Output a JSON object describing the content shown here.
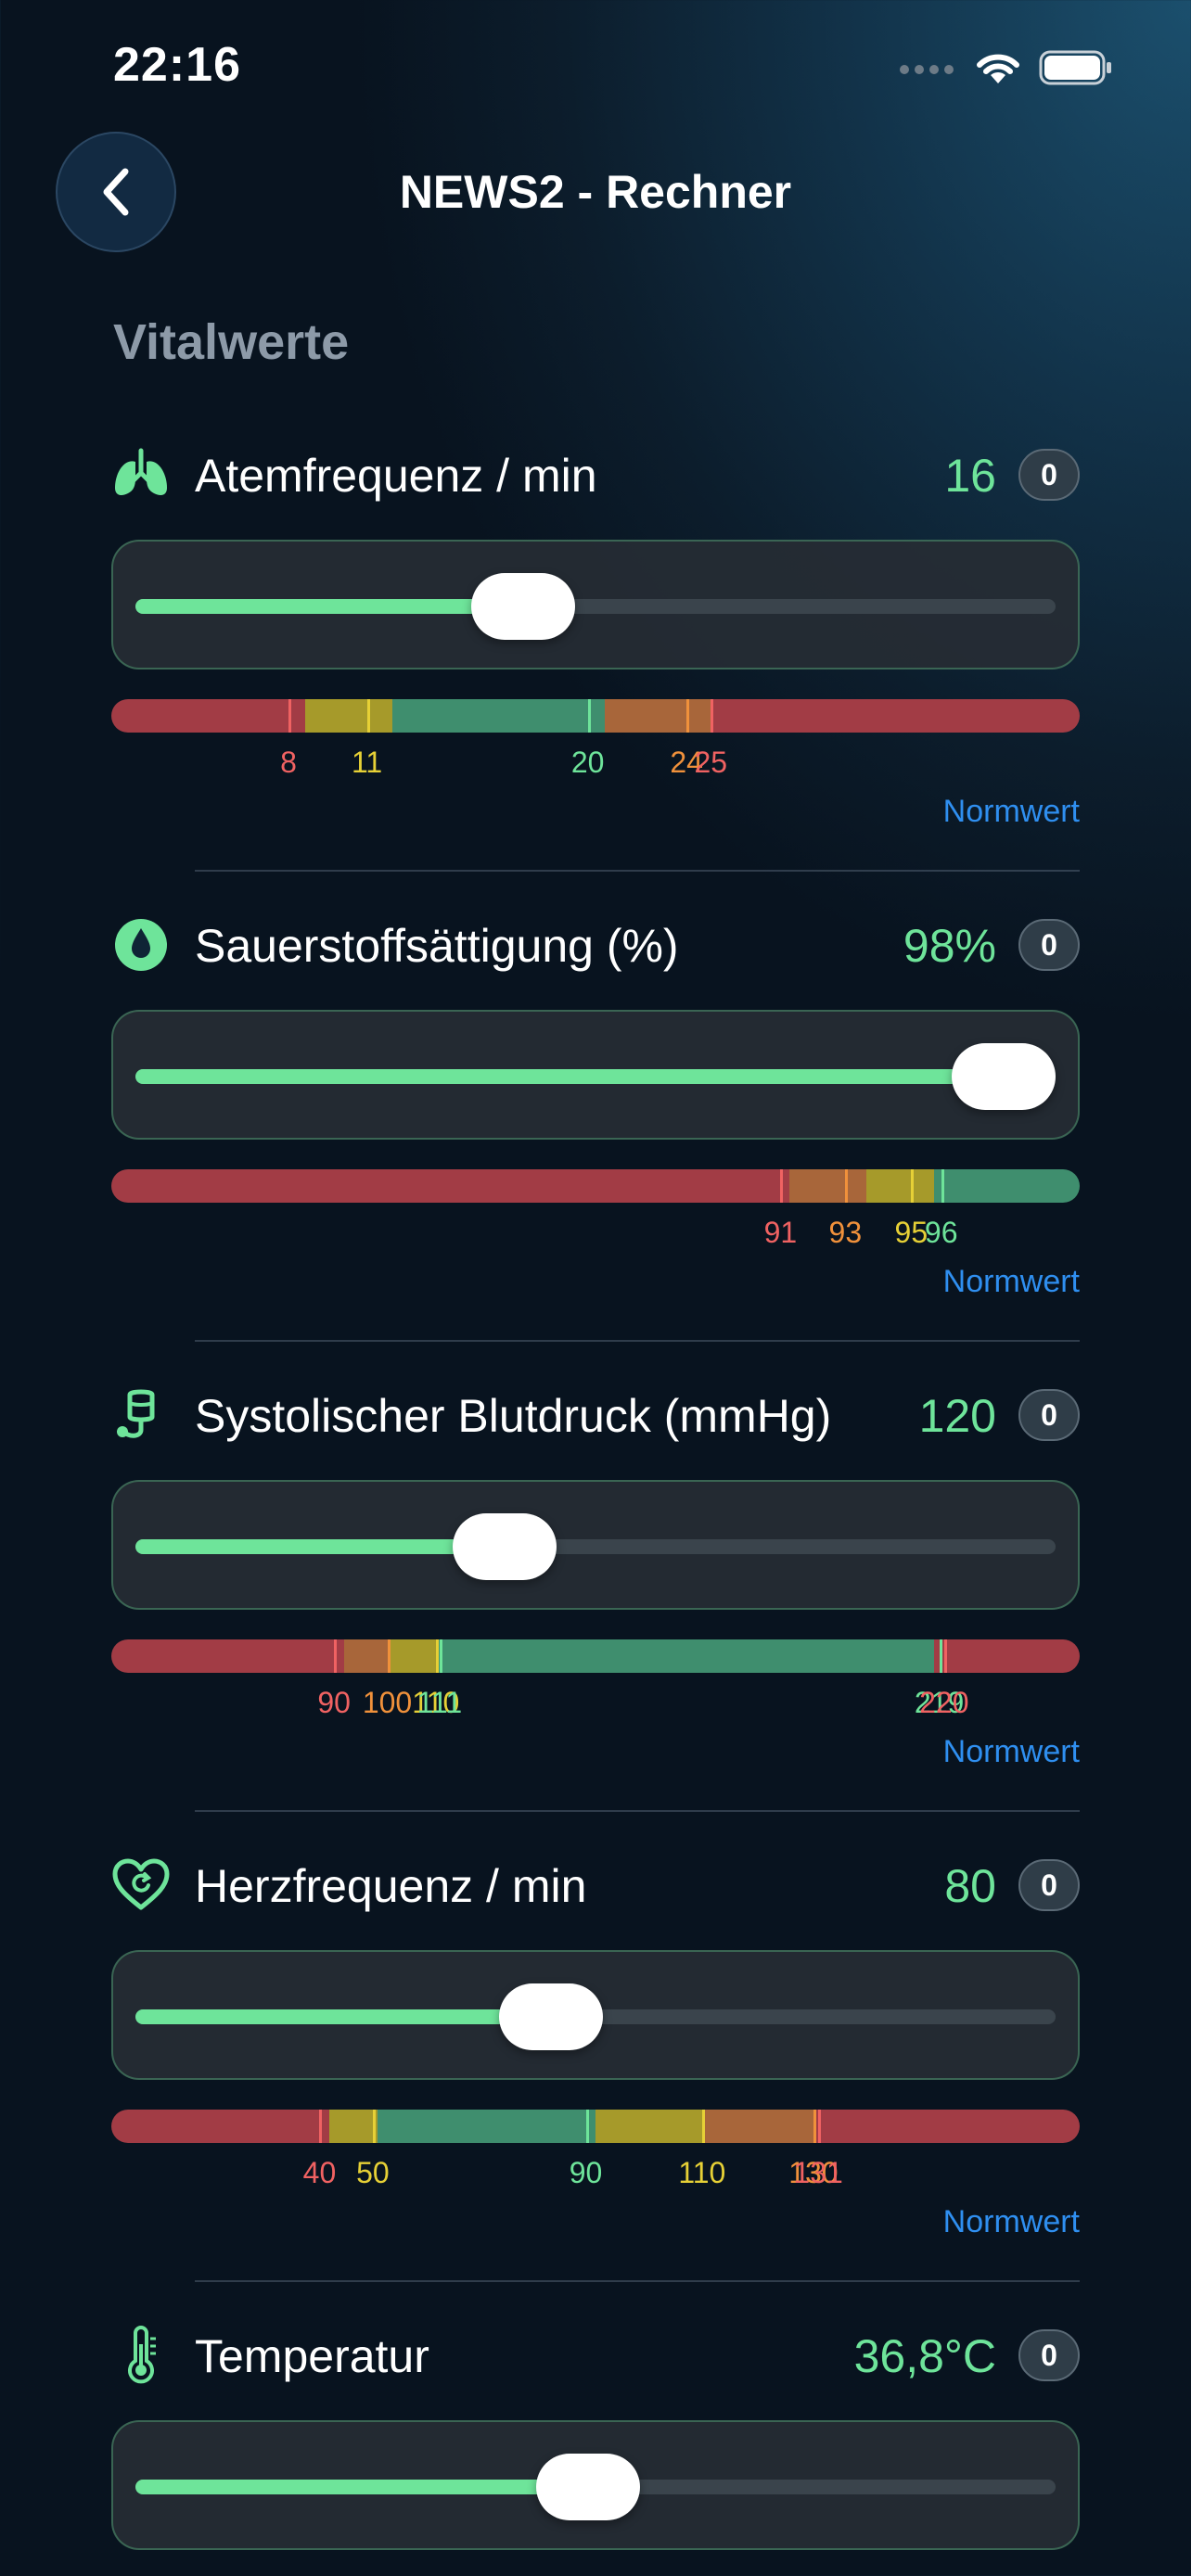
{
  "status": {
    "time": "22:16"
  },
  "nav": {
    "title": "NEWS2 - Rechner"
  },
  "section": {
    "title": "Vitalwerte"
  },
  "colors": {
    "accent": "#6ee49a",
    "link": "#2f8ff0",
    "red": "#f06262",
    "orange": "#f0913b",
    "yellow": "#e6d036"
  },
  "vitals": [
    {
      "label": "Atemfrequenz / min",
      "value": "16",
      "score": "0",
      "icon": "lungs-icon",
      "slider_fraction": 0.42,
      "segments": [
        [
          "red",
          0,
          0.2
        ],
        [
          "yellow",
          0.2,
          0.29
        ],
        [
          "green",
          0.29,
          0.51
        ],
        [
          "orange",
          0.51,
          0.62
        ],
        [
          "red",
          0.62,
          1
        ]
      ],
      "ticks": [
        {
          "label": "8",
          "pos": 0.183,
          "color": "red"
        },
        {
          "label": "11",
          "pos": 0.264,
          "color": "yellow"
        },
        {
          "label": "20",
          "pos": 0.492,
          "color": "green"
        },
        {
          "label": "24",
          "pos": 0.594,
          "color": "orange"
        },
        {
          "label": "25",
          "pos": 0.619,
          "color": "red"
        }
      ],
      "norm_label": "Normwert"
    },
    {
      "label": "Sauerstoffsättigung (%)",
      "value": "98%",
      "score": "0",
      "icon": "drop-icon",
      "slider_fraction": 0.94,
      "segments": [
        [
          "red",
          0,
          0.7
        ],
        [
          "orange",
          0.7,
          0.78
        ],
        [
          "yellow",
          0.78,
          0.85
        ],
        [
          "green",
          0.85,
          1
        ]
      ],
      "ticks": [
        {
          "label": "91",
          "pos": 0.691,
          "color": "red"
        },
        {
          "label": "93",
          "pos": 0.758,
          "color": "orange"
        },
        {
          "label": "95",
          "pos": 0.826,
          "color": "yellow"
        },
        {
          "label": "96",
          "pos": 0.857,
          "color": "green"
        }
      ],
      "norm_label": "Normwert"
    },
    {
      "label": "Systolischer Blutdruck (mmHg)",
      "value": "120",
      "score": "0",
      "icon": "bp-icon",
      "slider_fraction": 0.4,
      "segments": [
        [
          "red",
          0,
          0.24
        ],
        [
          "orange",
          0.24,
          0.285
        ],
        [
          "yellow",
          0.285,
          0.335
        ],
        [
          "green",
          0.335,
          0.85
        ],
        [
          "red",
          0.85,
          1
        ]
      ],
      "ticks": [
        {
          "label": "90",
          "pos": 0.23,
          "color": "red"
        },
        {
          "label": "100",
          "pos": 0.285,
          "color": "orange"
        },
        {
          "label": "110",
          "pos": 0.335,
          "color": "yellow"
        },
        {
          "label": "111",
          "pos": 0.339,
          "color": "green"
        },
        {
          "label": "219",
          "pos": 0.855,
          "color": "green"
        },
        {
          "label": "220",
          "pos": 0.86,
          "color": "red"
        }
      ],
      "norm_label": "Normwert"
    },
    {
      "label": "Herzfrequenz / min",
      "value": "80",
      "score": "0",
      "icon": "heart-icon",
      "slider_fraction": 0.45,
      "segments": [
        [
          "red",
          0,
          0.225
        ],
        [
          "yellow",
          0.225,
          0.275
        ],
        [
          "green",
          0.275,
          0.5
        ],
        [
          "yellow",
          0.5,
          0.61
        ],
        [
          "orange",
          0.61,
          0.725
        ],
        [
          "red",
          0.725,
          1
        ]
      ],
      "ticks": [
        {
          "label": "40",
          "pos": 0.215,
          "color": "red"
        },
        {
          "label": "50",
          "pos": 0.27,
          "color": "yellow"
        },
        {
          "label": "90",
          "pos": 0.49,
          "color": "green"
        },
        {
          "label": "110",
          "pos": 0.61,
          "color": "yellow"
        },
        {
          "label": "130",
          "pos": 0.725,
          "color": "orange"
        },
        {
          "label": "131",
          "pos": 0.73,
          "color": "red"
        }
      ],
      "norm_label": "Normwert"
    },
    {
      "label": "Temperatur",
      "value": "36,8°C",
      "score": "0",
      "icon": "thermometer-icon",
      "slider_fraction": 0.49,
      "segments": [],
      "ticks": [],
      "norm_label": ""
    }
  ]
}
